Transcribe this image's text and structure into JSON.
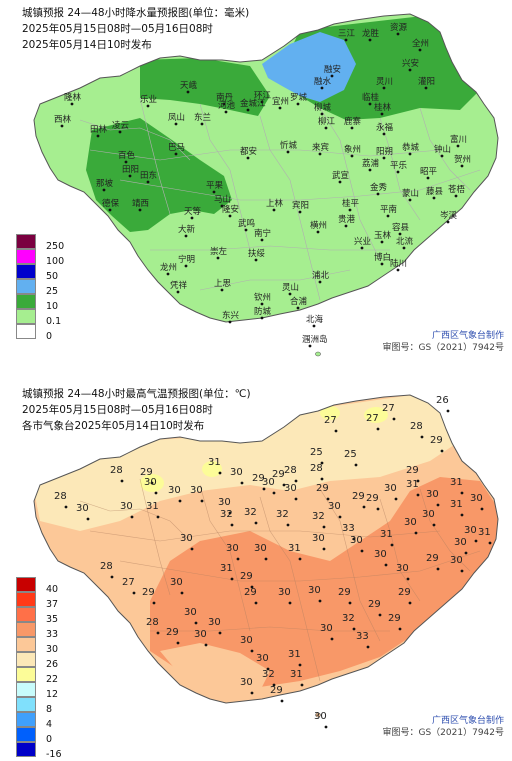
{
  "rain_map": {
    "title": "城镇预报 24—48小时降水量预报图(单位：毫米)",
    "period": "2025年05月15日08时—05月16日08时",
    "issued": "2025年05月14日10时发布",
    "legend": [
      {
        "label": "250",
        "color": "#7a0040"
      },
      {
        "label": "100",
        "color": "#ff00ff"
      },
      {
        "label": "50",
        "color": "#0000cc"
      },
      {
        "label": "25",
        "color": "#62b0f0"
      },
      {
        "label": "10",
        "color": "#3aaa3a"
      },
      {
        "label": "0.1",
        "color": "#a6ee90"
      },
      {
        "label": "0",
        "color": "#ffffff"
      }
    ],
    "cities": [
      "三江",
      "龙胜",
      "资源",
      "全州",
      "融安",
      "融水",
      "罗城",
      "环江",
      "南丹",
      "天峨",
      "乐业",
      "西林",
      "隆林",
      "田林",
      "凌云",
      "凤山",
      "东兰",
      "巴马",
      "百色",
      "田阳",
      "田东",
      "德保",
      "靖西",
      "那坡",
      "大新",
      "天等",
      "平果",
      "马山",
      "都安",
      "忻城",
      "宜州",
      "金城江",
      "河池",
      "柳城",
      "柳江",
      "来宾",
      "武宣",
      "象州",
      "鹿寨",
      "永福",
      "临桂",
      "阳朔",
      "荔浦",
      "平乐",
      "恭城",
      "钟山",
      "富川",
      "贺州",
      "昭平",
      "蒙山",
      "金秀",
      "桂平",
      "平南",
      "藤县",
      "苍梧",
      "岑溪",
      "北流",
      "容县",
      "玉林",
      "博白",
      "陆川",
      "兴业",
      "贵港",
      "横州",
      "宾阳",
      "上林",
      "武鸣",
      "隆安",
      "南宁",
      "扶绥",
      "崇左",
      "宁明",
      "龙州",
      "凭祥",
      "上思",
      "钦州",
      "灵山",
      "浦北",
      "合浦",
      "北海",
      "防城",
      "东兴",
      "涠洲岛",
      "兴安",
      "灌阳",
      "灵川",
      "桂林"
    ]
  },
  "temp_map": {
    "title": "城镇预报 24—48小时最高气温预报图(单位：℃)",
    "period": "2025年05月15日08时—05月16日08时",
    "issued": "各市气象台2025年05月14日10时发布",
    "legend": [
      {
        "label": "40",
        "color": "#c80000"
      },
      {
        "label": "37",
        "color": "#ff3a18"
      },
      {
        "label": "35",
        "color": "#ff7048"
      },
      {
        "label": "33",
        "color": "#f89868"
      },
      {
        "label": "30",
        "color": "#fcc898"
      },
      {
        "label": "26",
        "color": "#fce8b8"
      },
      {
        "label": "22",
        "color": "#fcfc98"
      },
      {
        "label": "12",
        "color": "#c8fcfc"
      },
      {
        "label": "8",
        "color": "#80e0fc"
      },
      {
        "label": "4",
        "color": "#40a0fc"
      },
      {
        "label": "0",
        "color": "#0060fc"
      },
      {
        "label": "-16",
        "color": "#0000c8"
      }
    ],
    "values": [
      "26",
      "27",
      "27",
      "27",
      "28",
      "29",
      "29",
      "25",
      "25",
      "28",
      "28",
      "28",
      "30",
      "28",
      "29",
      "30",
      "30",
      "30",
      "31",
      "30",
      "29",
      "29",
      "30",
      "30",
      "30",
      "29",
      "30",
      "29",
      "29",
      "30",
      "31",
      "30",
      "31",
      "31",
      "30",
      "30",
      "31",
      "30",
      "32",
      "32",
      "32",
      "32",
      "33",
      "31",
      "30",
      "30",
      "30",
      "30",
      "31",
      "29",
      "30",
      "31",
      "30",
      "30",
      "31",
      "30",
      "30",
      "30",
      "30",
      "29",
      "30",
      "30",
      "30",
      "29",
      "30",
      "30",
      "29",
      "29",
      "29",
      "29",
      "28",
      "29",
      "30",
      "30",
      "30",
      "31",
      "31",
      "30",
      "32",
      "33",
      "32",
      "30",
      "29",
      "28",
      "27",
      "29",
      "30"
    ]
  },
  "credit": {
    "org": "广西区气象台制作",
    "cert": "审图号：GS（2021）7942号"
  },
  "colors": {
    "map_outline": "#555555",
    "county_line": "#aaaaaa"
  }
}
